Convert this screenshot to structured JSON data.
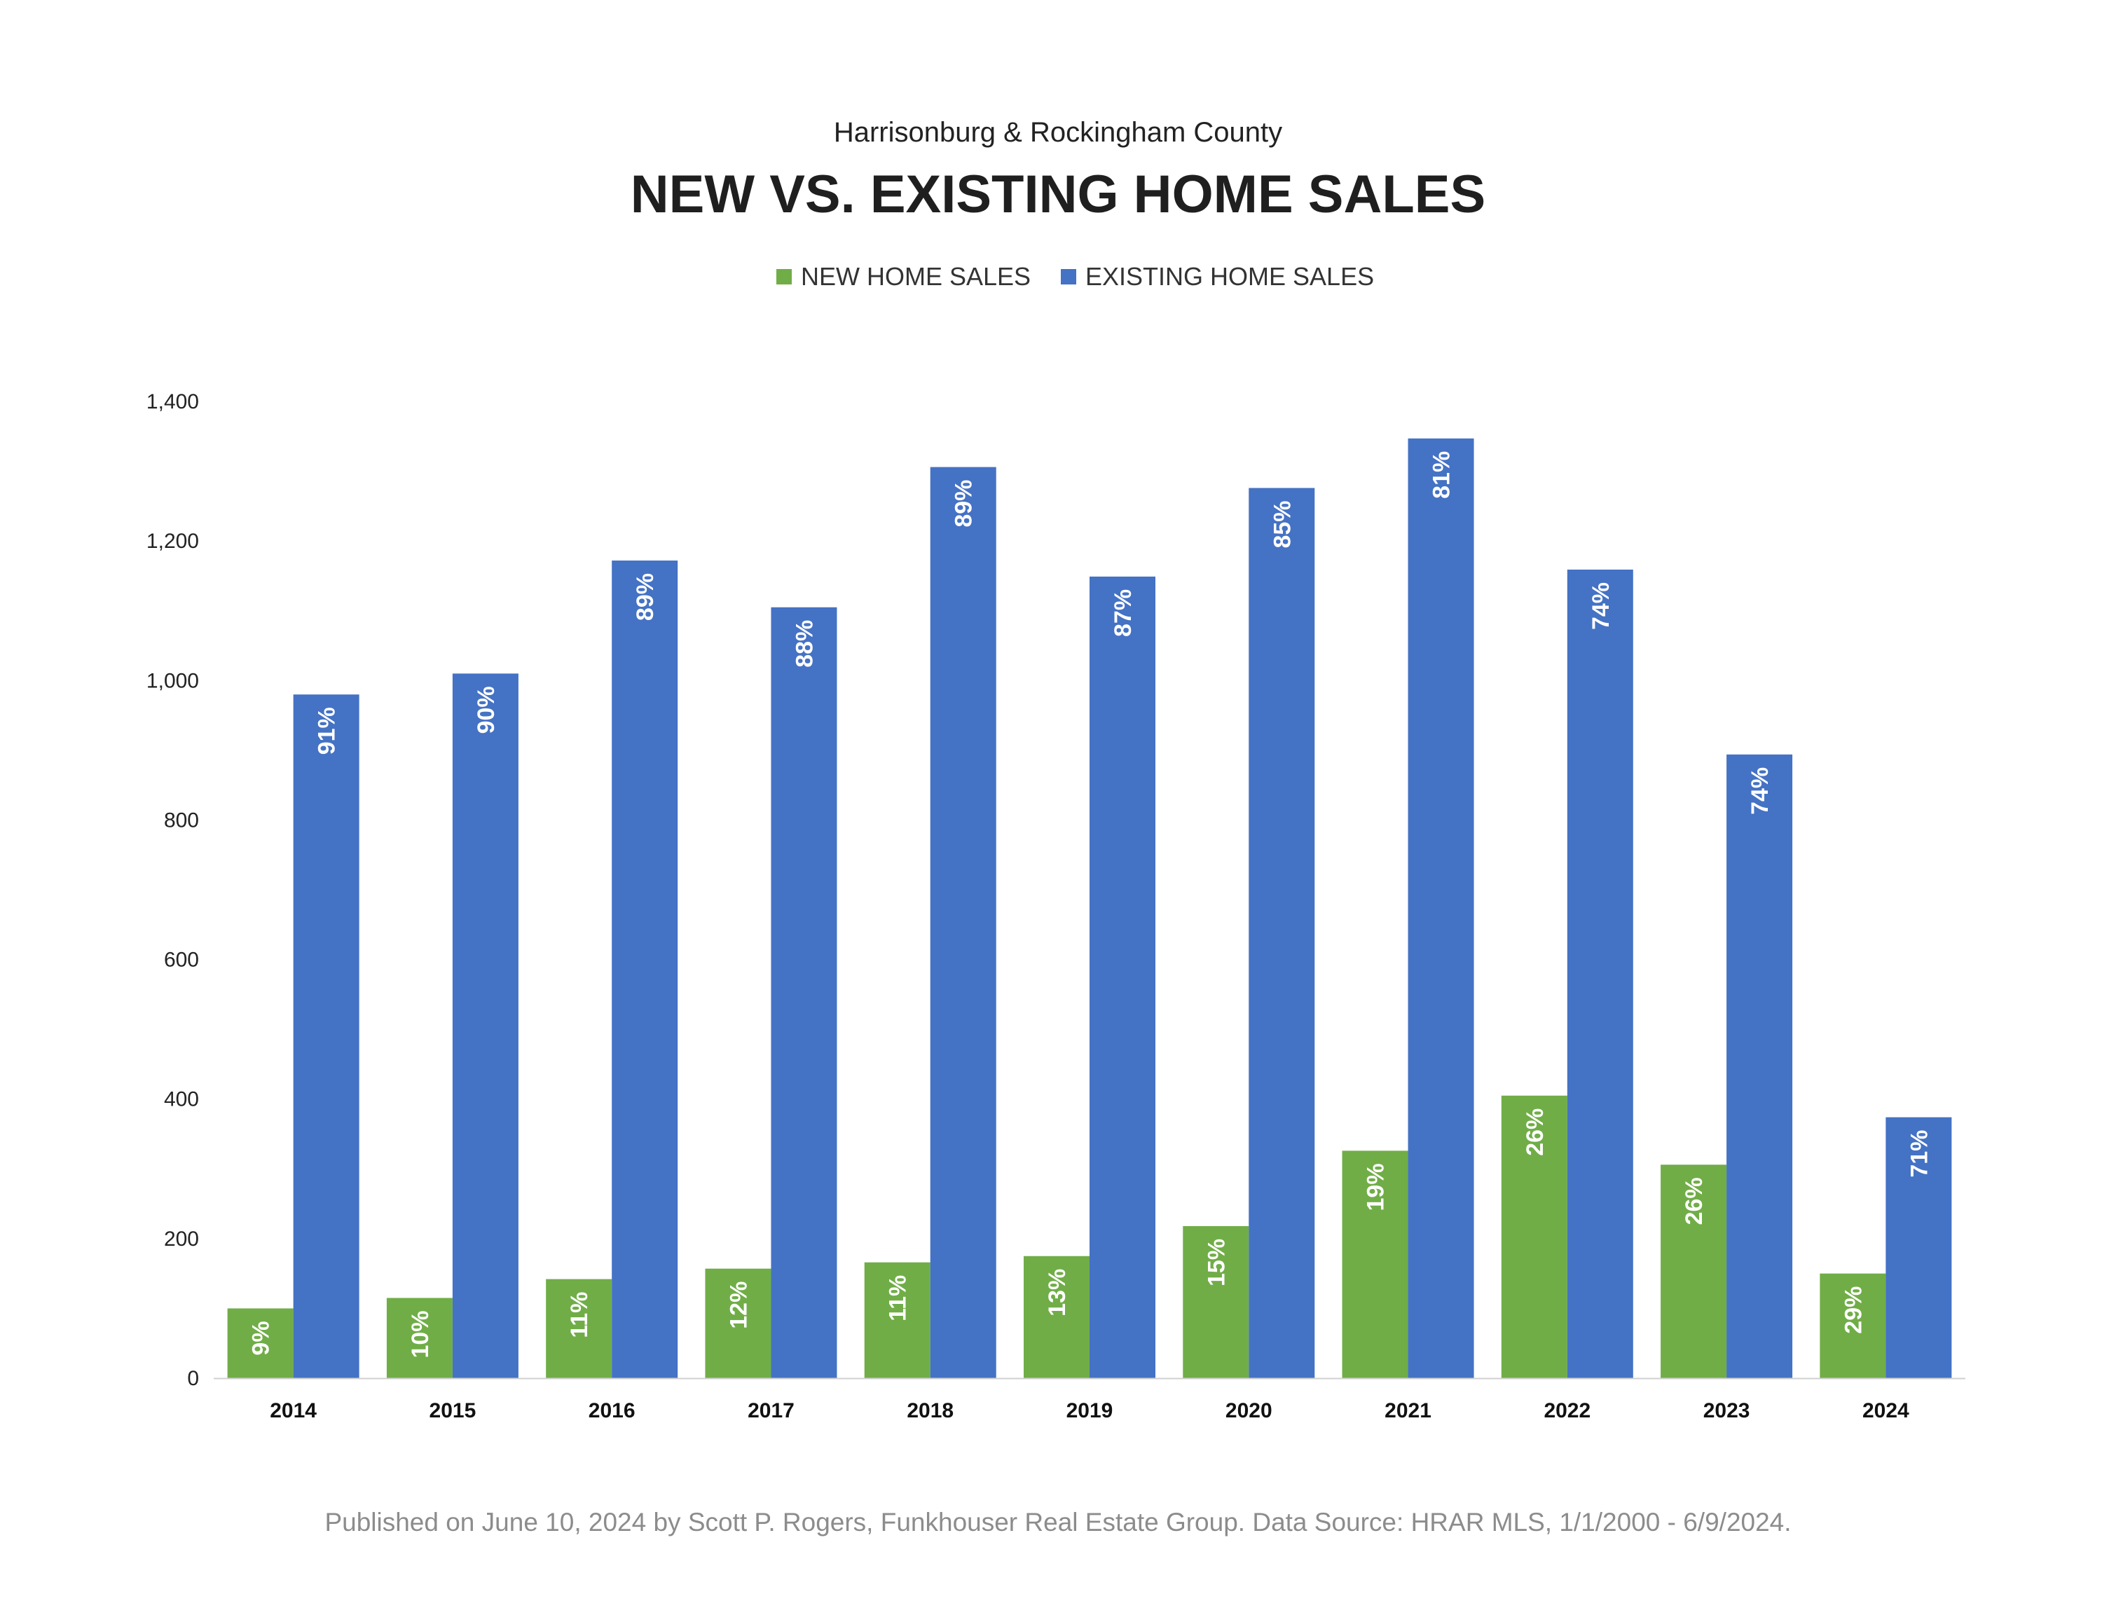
{
  "chart_data": {
    "type": "bar",
    "subtitle": "Harrisonburg & Rockingham County",
    "title": "NEW VS. EXISTING HOME SALES",
    "categories": [
      "2014",
      "2015",
      "2016",
      "2017",
      "2018",
      "2019",
      "2020",
      "2021",
      "2022",
      "2023",
      "2024"
    ],
    "series": [
      {
        "name": "NEW HOME SALES",
        "color": "#70ad47",
        "values": [
          100,
          115,
          142,
          157,
          166,
          175,
          218,
          326,
          405,
          306,
          150
        ],
        "labels": [
          "9%",
          "10%",
          "11%",
          "12%",
          "11%",
          "13%",
          "15%",
          "19%",
          "26%",
          "26%",
          "29%"
        ]
      },
      {
        "name": "EXISTING HOME SALES",
        "color": "#4472c4",
        "values": [
          980,
          1010,
          1172,
          1105,
          1306,
          1149,
          1276,
          1347,
          1159,
          894,
          374
        ],
        "labels": [
          "91%",
          "90%",
          "89%",
          "88%",
          "89%",
          "87%",
          "85%",
          "81%",
          "74%",
          "74%",
          "71%"
        ]
      }
    ],
    "yticks": [
      "0",
      "200",
      "400",
      "600",
      "800",
      "1,000",
      "1,200",
      "1,400"
    ],
    "ylim": [
      0,
      1400
    ],
    "legend_position": "top-center",
    "grid": false,
    "footnote": "Published on June 10, 2024 by Scott P. Rogers, Funkhouser Real Estate Group. Data Source: HRAR MLS, 1/1/2000 - 6/9/2024."
  }
}
